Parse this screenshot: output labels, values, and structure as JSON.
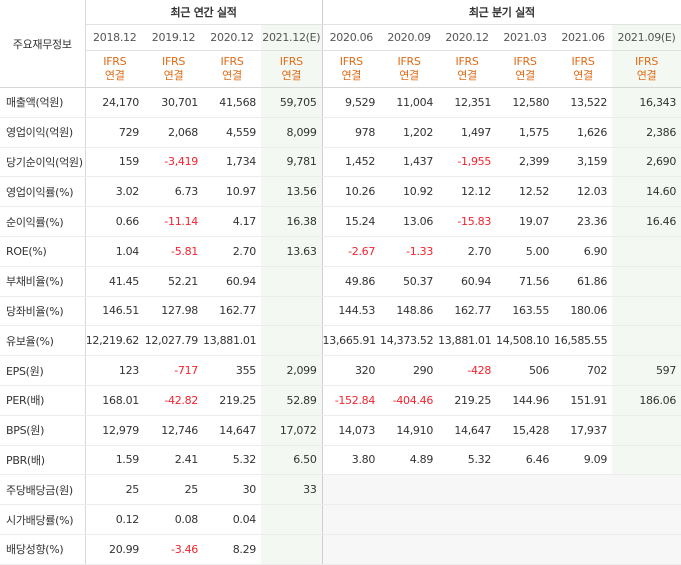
{
  "table": {
    "corner_label": "주요재무정보",
    "group_headers": {
      "annual": "최근 연간 실적",
      "quarterly": "최근 분기 실적"
    },
    "periods": [
      "2018.12",
      "2019.12",
      "2020.12",
      "2021.12(E)",
      "2020.06",
      "2020.09",
      "2020.12",
      "2021.03",
      "2021.06",
      "2021.09(E)"
    ],
    "ifrs_label": "IFRS",
    "basis_label": "연결",
    "rows": [
      {
        "label": "매출액(억원)",
        "values": [
          "24,170",
          "30,701",
          "41,568",
          "59,705",
          "9,529",
          "11,004",
          "12,351",
          "12,580",
          "13,522",
          "16,343"
        ]
      },
      {
        "label": "영업이익(억원)",
        "values": [
          "729",
          "2,068",
          "4,559",
          "8,099",
          "978",
          "1,202",
          "1,497",
          "1,575",
          "1,626",
          "2,386"
        ]
      },
      {
        "label": "당기순이익(억원)",
        "values": [
          "159",
          "-3,419",
          "1,734",
          "9,781",
          "1,452",
          "1,437",
          "-1,955",
          "2,399",
          "3,159",
          "2,690"
        ]
      },
      {
        "label": "영업이익률(%)",
        "values": [
          "3.02",
          "6.73",
          "10.97",
          "13.56",
          "10.26",
          "10.92",
          "12.12",
          "12.52",
          "12.03",
          "14.60"
        ]
      },
      {
        "label": "순이익률(%)",
        "values": [
          "0.66",
          "-11.14",
          "4.17",
          "16.38",
          "15.24",
          "13.06",
          "-15.83",
          "19.07",
          "23.36",
          "16.46"
        ]
      },
      {
        "label": "ROE(%)",
        "values": [
          "1.04",
          "-5.81",
          "2.70",
          "13.63",
          "-2.67",
          "-1.33",
          "2.70",
          "5.00",
          "6.90",
          ""
        ]
      },
      {
        "label": "부채비율(%)",
        "values": [
          "41.45",
          "52.21",
          "60.94",
          "",
          "49.86",
          "50.37",
          "60.94",
          "71.56",
          "61.86",
          ""
        ]
      },
      {
        "label": "당좌비율(%)",
        "values": [
          "146.51",
          "127.98",
          "162.77",
          "",
          "144.53",
          "148.86",
          "162.77",
          "163.55",
          "180.06",
          ""
        ]
      },
      {
        "label": "유보율(%)",
        "values": [
          "12,219.62",
          "12,027.79",
          "13,881.01",
          "",
          "13,665.91",
          "14,373.52",
          "13,881.01",
          "14,508.10",
          "16,585.55",
          ""
        ]
      },
      {
        "label": "EPS(원)",
        "values": [
          "123",
          "-717",
          "355",
          "2,099",
          "320",
          "290",
          "-428",
          "506",
          "702",
          "597"
        ]
      },
      {
        "label": "PER(배)",
        "values": [
          "168.01",
          "-42.82",
          "219.25",
          "52.89",
          "-152.84",
          "-404.46",
          "219.25",
          "144.96",
          "151.91",
          "186.06"
        ]
      },
      {
        "label": "BPS(원)",
        "values": [
          "12,979",
          "12,746",
          "14,647",
          "17,072",
          "14,073",
          "14,910",
          "14,647",
          "15,428",
          "17,937",
          ""
        ]
      },
      {
        "label": "PBR(배)",
        "values": [
          "1.59",
          "2.41",
          "5.32",
          "6.50",
          "3.80",
          "4.89",
          "5.32",
          "6.46",
          "9.09",
          ""
        ]
      },
      {
        "label": "주당배당금(원)",
        "values": [
          "25",
          "25",
          "30",
          "33",
          "",
          "",
          "",
          "",
          "",
          ""
        ]
      },
      {
        "label": "시가배당률(%)",
        "values": [
          "0.12",
          "0.08",
          "0.04",
          "",
          "",
          "",
          "",
          "",
          "",
          ""
        ]
      },
      {
        "label": "배당성향(%)",
        "values": [
          "20.99",
          "-3.46",
          "8.29",
          "",
          "",
          "",
          "",
          "",
          "",
          ""
        ]
      }
    ]
  }
}
